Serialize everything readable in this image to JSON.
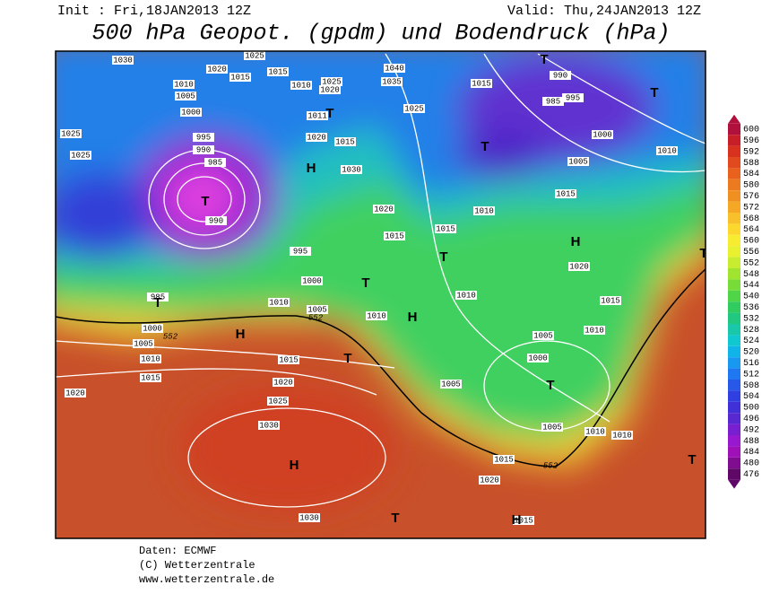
{
  "header": {
    "init": "Init : Fri,18JAN2013 12Z",
    "valid": "Valid: Thu,24JAN2013 12Z",
    "title": "500 hPa Geopot. (gpdm) und Bodendruck (hPa)"
  },
  "colorbar": {
    "ticks": [
      600,
      596,
      592,
      588,
      584,
      580,
      576,
      572,
      568,
      564,
      560,
      556,
      552,
      548,
      544,
      540,
      536,
      532,
      528,
      524,
      520,
      516,
      512,
      508,
      504,
      500,
      496,
      492,
      488,
      484,
      480,
      476
    ],
    "colors": [
      "#b0103c",
      "#c81e28",
      "#d8321e",
      "#e04a1e",
      "#e8621e",
      "#ec7a20",
      "#f09022",
      "#f4a826",
      "#f8c02a",
      "#fcd82e",
      "#f8ec30",
      "#e8f030",
      "#c8ec30",
      "#a0e430",
      "#78dc38",
      "#50d448",
      "#30cc60",
      "#20c880",
      "#18c8a8",
      "#10c8d0",
      "#10b4e8",
      "#1898f0",
      "#2078f0",
      "#2858e8",
      "#3040e0",
      "#4030d8",
      "#5828d0",
      "#7820d0",
      "#9818d0",
      "#a010b8",
      "#800c90",
      "#600868"
    ]
  },
  "map": {
    "pressure_labels": [
      "1030",
      "1020",
      "1025",
      "1015",
      "1015",
      "1010",
      "1005",
      "1000",
      "995",
      "990",
      "985",
      "1025",
      "1025",
      "1010",
      "1025",
      "1020",
      "1040",
      "1035",
      "1025",
      "1015",
      "990",
      "985",
      "995",
      "1000",
      "1005",
      "1010",
      "1015",
      "1010",
      "1011",
      "1020",
      "1015",
      "1030",
      "1020",
      "1015",
      "1015",
      "990",
      "995",
      "1000",
      "1010",
      "1005",
      "1010",
      "1010",
      "1020",
      "1015",
      "1010",
      "1005",
      "1000",
      "1005",
      "1005",
      "1010",
      "1010",
      "985",
      "1000",
      "1005",
      "1010",
      "1015",
      "1020",
      "1015",
      "1020",
      "1025",
      "1030",
      "1015",
      "1020",
      "1030",
      "1015"
    ],
    "contour_labels": [
      "552",
      "552",
      "552"
    ],
    "symbols": [
      "H",
      "H",
      "H",
      "H",
      "H",
      "H",
      "T",
      "T",
      "T",
      "T",
      "T",
      "T",
      "T",
      "T",
      "T",
      "T",
      "T",
      "T",
      "T"
    ]
  },
  "footer": {
    "source": "Daten: ECMWF",
    "copyright": "(C) Wetterzentrale",
    "url": "www.wetterzentrale.de"
  }
}
